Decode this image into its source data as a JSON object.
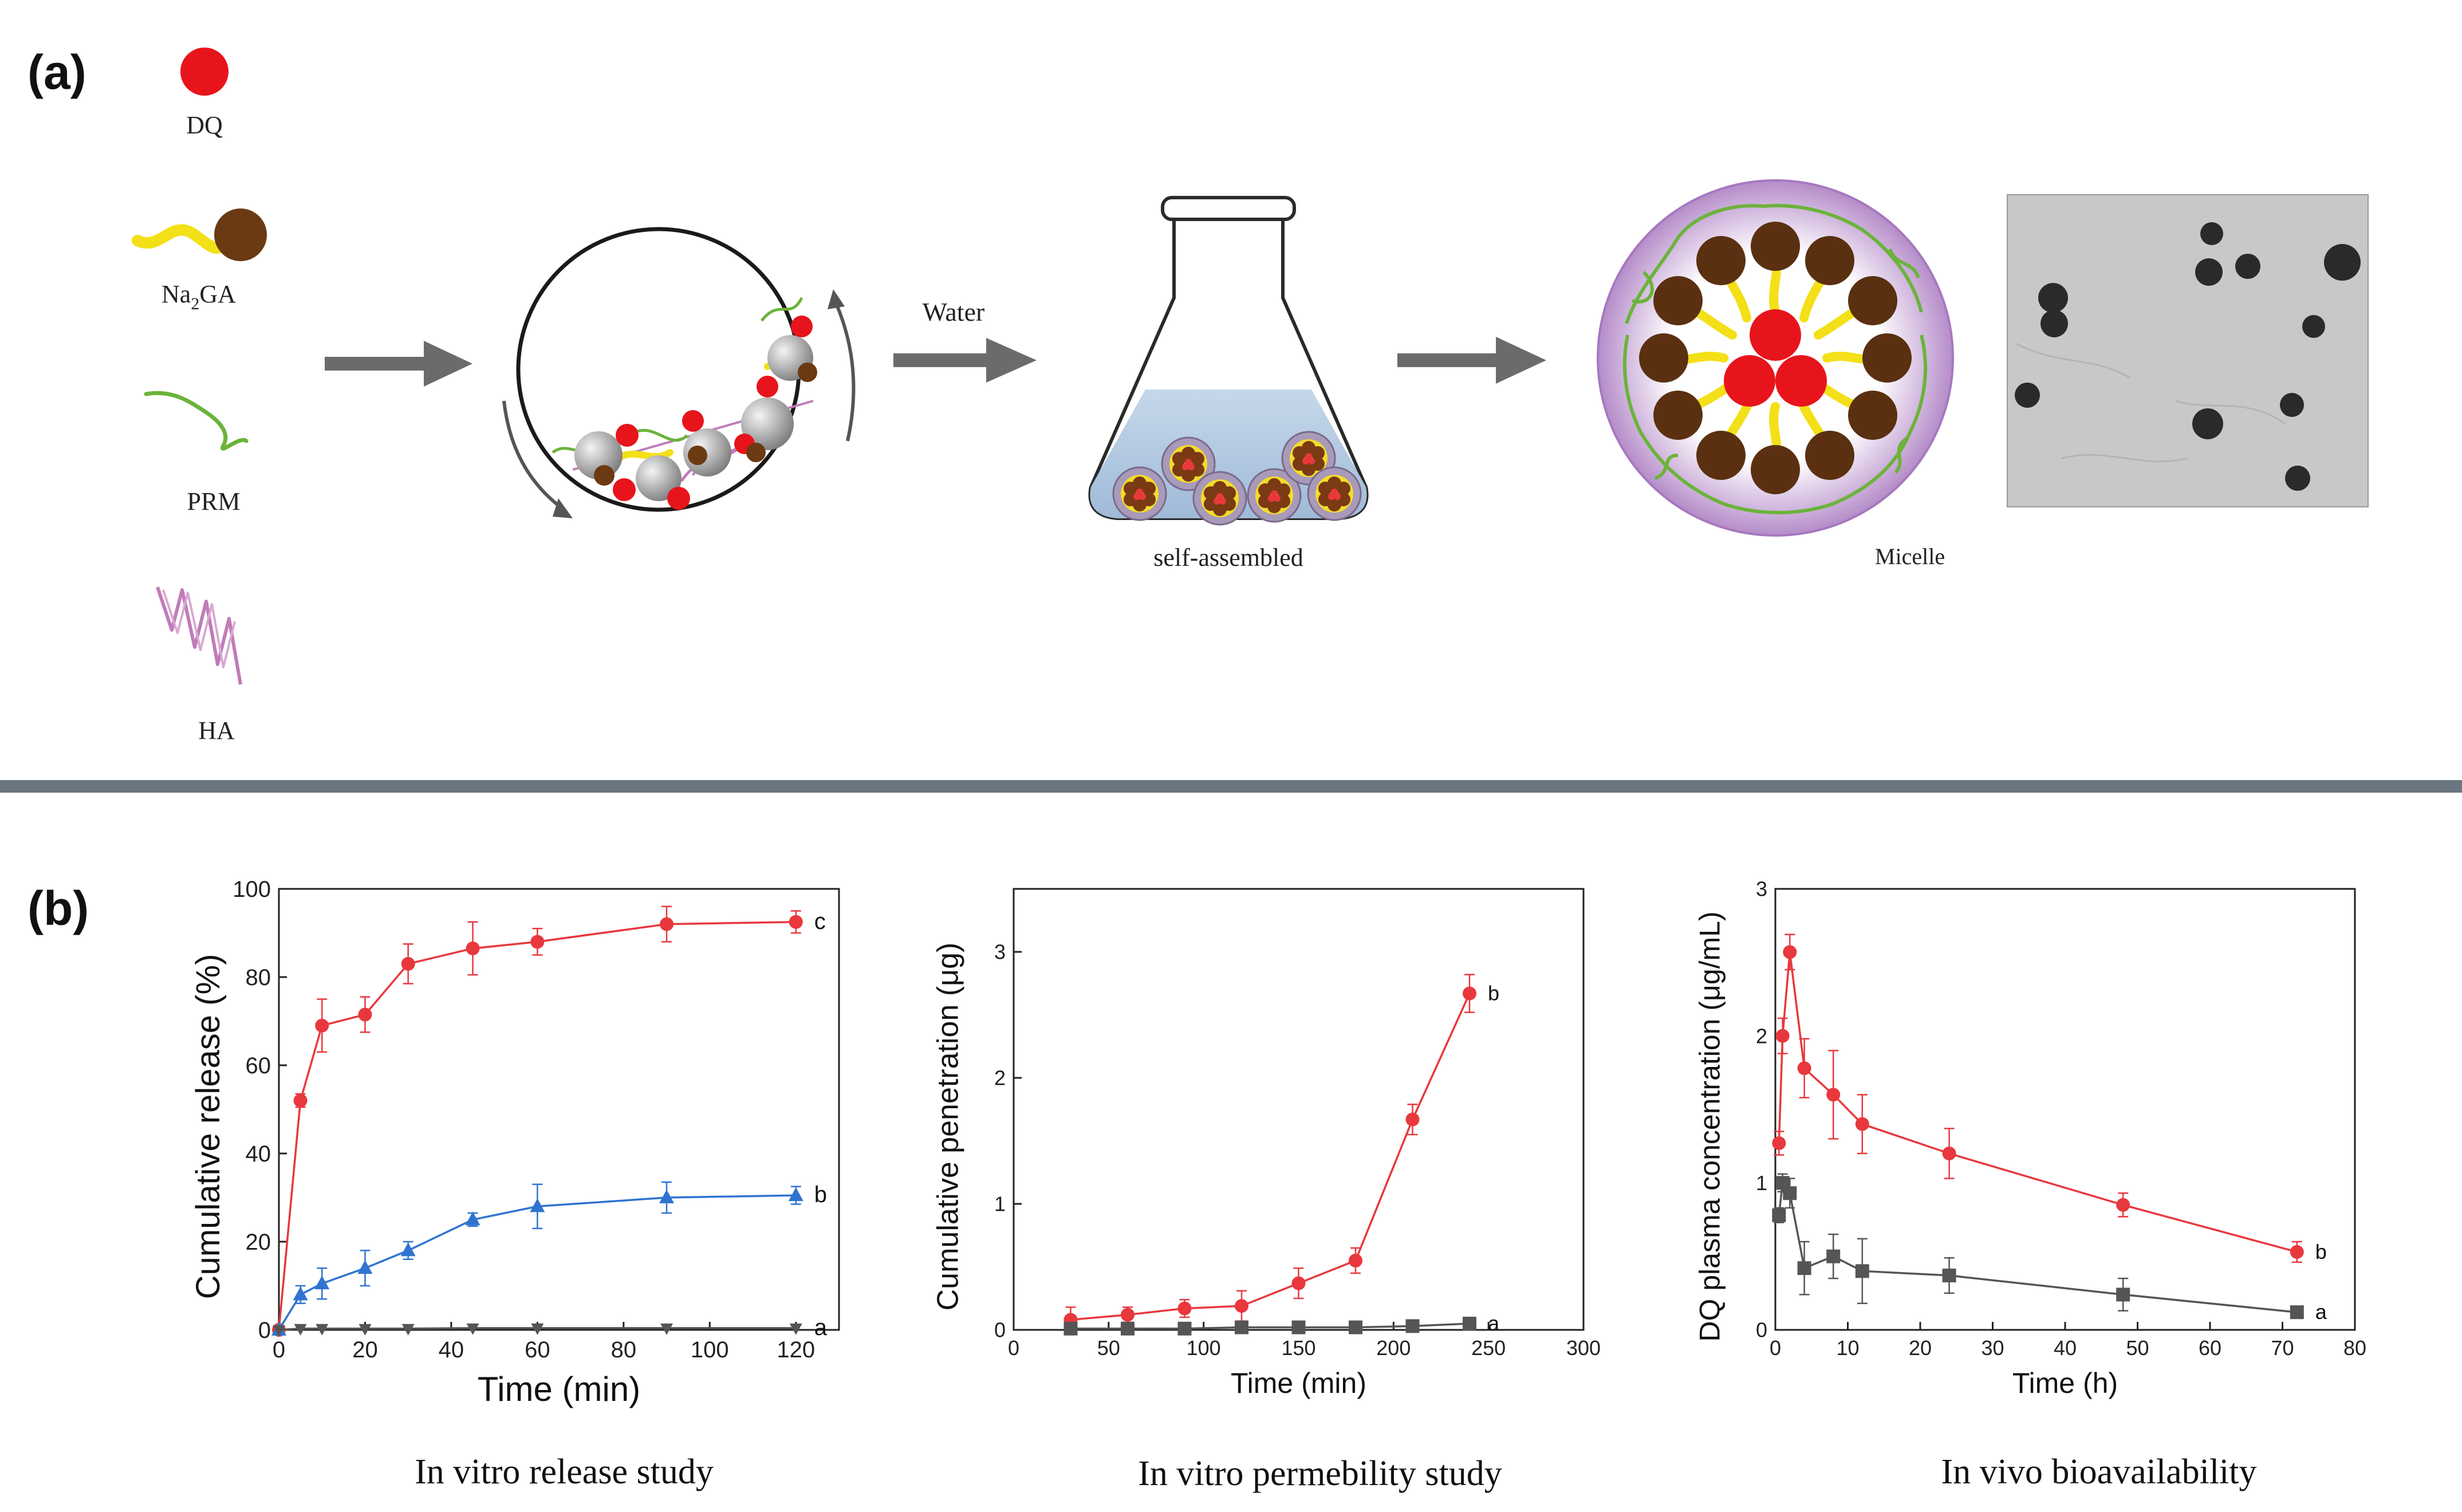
{
  "panel_a": {
    "label": "(a)",
    "legend": {
      "dq": "DQ",
      "na2ga_prefix": "Na",
      "na2ga_sub": "2",
      "na2ga_suffix": "GA",
      "prm": "PRM",
      "ha": "HA"
    },
    "water_label": "Water",
    "flask_label": "self-assembled",
    "micelle_label": "Micelle"
  },
  "panel_b": {
    "label": "(b)",
    "captions": [
      "In vitro release study",
      "In vitro permebility study",
      "In vivo bioavailability"
    ]
  },
  "colors": {
    "red": "#e8383d",
    "blue": "#2f74d0",
    "gray": "#555555",
    "arrow": "#6b6b6b",
    "divider": "#6a7680"
  },
  "chart_data": [
    {
      "type": "line",
      "xlabel": "Time (min)",
      "ylabel": "Cumulative release (%)",
      "xlim": [
        0,
        130
      ],
      "ylim": [
        0,
        100
      ],
      "xticks": [
        0,
        20,
        40,
        60,
        80,
        100,
        120
      ],
      "yticks": [
        0,
        20,
        40,
        60,
        80,
        100
      ],
      "series": [
        {
          "name": "c",
          "color": "#e8383d",
          "marker": "circle",
          "x": [
            0,
            5,
            10,
            20,
            30,
            45,
            60,
            90,
            120
          ],
          "y": [
            0,
            52,
            69,
            71.5,
            83,
            86.5,
            88,
            92,
            92.5
          ],
          "err": [
            0,
            1.5,
            6,
            4,
            4.5,
            6,
            3,
            4,
            2.5
          ]
        },
        {
          "name": "b",
          "color": "#2f74d0",
          "marker": "triangle",
          "x": [
            0,
            5,
            10,
            20,
            30,
            45,
            60,
            90,
            120
          ],
          "y": [
            0,
            8,
            10.5,
            14,
            18,
            25,
            28,
            30,
            30.5
          ],
          "err": [
            0,
            2,
            3.5,
            4,
            2,
            1.5,
            5,
            3.5,
            2
          ]
        },
        {
          "name": "a",
          "color": "#555555",
          "marker": "triangle-down",
          "x": [
            0,
            5,
            10,
            20,
            30,
            45,
            60,
            90,
            120
          ],
          "y": [
            0,
            0.3,
            0.3,
            0.3,
            0.3,
            0.4,
            0.4,
            0.4,
            0.4
          ],
          "err": [
            0,
            0,
            0,
            0,
            0,
            0,
            0,
            0,
            0
          ]
        }
      ]
    },
    {
      "type": "line",
      "xlabel": "Time (min)",
      "ylabel": "Cumulative penetration (μg)",
      "xlim": [
        0,
        300
      ],
      "ylim": [
        0,
        3.5
      ],
      "xticks": [
        0,
        50,
        100,
        150,
        200,
        250,
        300
      ],
      "yticks": [
        0,
        1,
        2,
        3
      ],
      "series": [
        {
          "name": "b",
          "color": "#e8383d",
          "marker": "circle",
          "x": [
            30,
            60,
            90,
            120,
            150,
            180,
            210,
            240
          ],
          "y": [
            0.08,
            0.12,
            0.17,
            0.19,
            0.37,
            0.55,
            1.67,
            2.67
          ],
          "err": [
            0.1,
            0.06,
            0.07,
            0.12,
            0.12,
            0.1,
            0.12,
            0.15
          ]
        },
        {
          "name": "a",
          "color": "#555555",
          "marker": "square",
          "x": [
            30,
            60,
            90,
            120,
            150,
            180,
            210,
            240
          ],
          "y": [
            0.01,
            0.01,
            0.01,
            0.02,
            0.02,
            0.02,
            0.03,
            0.05
          ],
          "err": [
            0,
            0,
            0,
            0,
            0,
            0,
            0,
            0
          ]
        }
      ]
    },
    {
      "type": "line",
      "xlabel": "Time (h)",
      "ylabel": "DQ plasma concentration (μg/mL)",
      "xlim": [
        0,
        80
      ],
      "ylim": [
        0,
        3
      ],
      "xticks": [
        0,
        10,
        20,
        30,
        40,
        50,
        60,
        70,
        80
      ],
      "yticks": [
        0,
        1,
        2,
        3
      ],
      "series": [
        {
          "name": "b",
          "color": "#e8383d",
          "marker": "circle",
          "x": [
            0.5,
            1,
            2,
            4,
            8,
            12,
            24,
            48,
            72
          ],
          "y": [
            1.27,
            2.0,
            2.57,
            1.78,
            1.6,
            1.4,
            1.2,
            0.85,
            0.53
          ],
          "err": [
            0.08,
            0.12,
            0.12,
            0.2,
            0.3,
            0.2,
            0.17,
            0.08,
            0.07
          ]
        },
        {
          "name": "a",
          "color": "#555555",
          "marker": "square",
          "x": [
            0.5,
            1,
            2,
            4,
            8,
            12,
            24,
            48,
            72
          ],
          "y": [
            0.78,
            1.0,
            0.93,
            0.42,
            0.5,
            0.4,
            0.37,
            0.24,
            0.12
          ],
          "err": [
            0.05,
            0.06,
            0.1,
            0.18,
            0.15,
            0.22,
            0.12,
            0.11,
            0.03
          ]
        }
      ]
    }
  ]
}
